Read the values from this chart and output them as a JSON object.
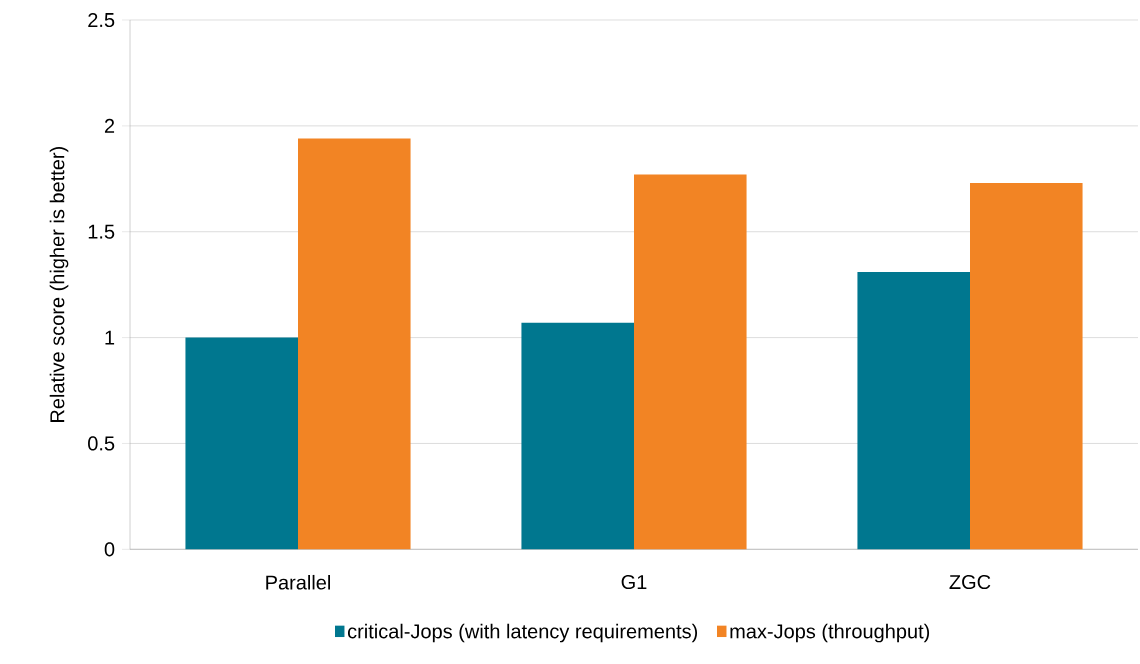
{
  "chart_data": {
    "type": "bar",
    "ylabel": "Relative score (higher is better)",
    "categories": [
      "Parallel",
      "G1",
      "ZGC"
    ],
    "series": [
      {
        "name": "critical-Jops (with latency requirements)",
        "color": "#00778f",
        "values": [
          1.0,
          1.07,
          1.31
        ]
      },
      {
        "name": "max-Jops (throughput)",
        "color": "#f28424",
        "values": [
          1.94,
          1.77,
          1.73
        ]
      }
    ],
    "ylim": [
      0,
      2.5
    ],
    "yticks": [
      0,
      0.5,
      1,
      1.5,
      2,
      2.5
    ],
    "grid": "y",
    "legend": "bottom"
  }
}
